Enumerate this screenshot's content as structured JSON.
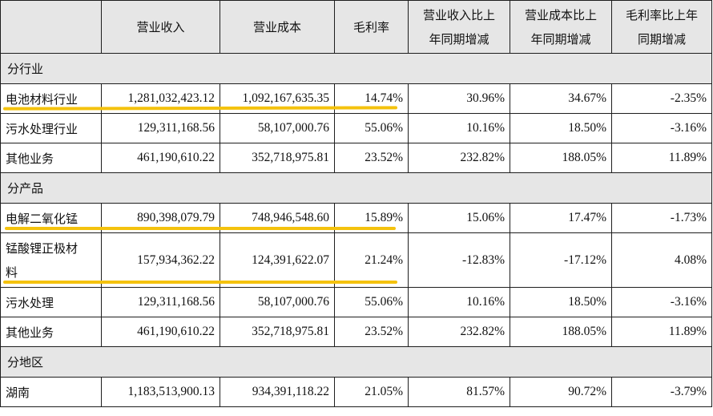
{
  "headers": [
    "",
    "营业收入",
    "营业成本",
    "毛利率",
    "营业收入比上年同期增减",
    "营业成本比上年同期增减",
    "毛利率比上年同期增减"
  ],
  "headers_display": {
    "h4": [
      "营业收入比上",
      "年同期增减"
    ],
    "h5": [
      "营业成本比上",
      "年同期增减"
    ],
    "h6": [
      "毛利率比上年",
      "同期增减"
    ]
  },
  "sections": [
    {
      "title": "分行业",
      "rows": [
        {
          "label": "电池材料行业",
          "revenue": "1,281,032,423.12",
          "cost": "1,092,167,635.35",
          "margin": "14.74%",
          "rev_yoy": "30.96%",
          "cost_yoy": "34.67%",
          "margin_yoy": "-2.35%",
          "highlighted": true
        },
        {
          "label": "污水处理行业",
          "revenue": "129,311,168.56",
          "cost": "58,107,000.76",
          "margin": "55.06%",
          "rev_yoy": "10.16%",
          "cost_yoy": "18.50%",
          "margin_yoy": "-3.16%"
        },
        {
          "label": "其他业务",
          "revenue": "461,190,610.22",
          "cost": "352,718,975.81",
          "margin": "23.52%",
          "rev_yoy": "232.82%",
          "cost_yoy": "188.05%",
          "margin_yoy": "11.89%"
        }
      ]
    },
    {
      "title": "分产品",
      "rows": [
        {
          "label": "电解二氧化锰",
          "revenue": "890,398,079.79",
          "cost": "748,946,548.60",
          "margin": "15.89%",
          "rev_yoy": "15.06%",
          "cost_yoy": "17.47%",
          "margin_yoy": "-1.73%",
          "highlighted": true
        },
        {
          "label": "锰酸锂正极材料",
          "label_lines": [
            "锰酸锂正极材",
            "料"
          ],
          "revenue": "157,934,362.22",
          "cost": "124,391,622.07",
          "margin": "21.24%",
          "rev_yoy": "-12.83%",
          "cost_yoy": "-17.12%",
          "margin_yoy": "4.08%",
          "highlighted": true
        },
        {
          "label": "污水处理",
          "revenue": "129,311,168.56",
          "cost": "58,107,000.76",
          "margin": "55.06%",
          "rev_yoy": "10.16%",
          "cost_yoy": "18.50%",
          "margin_yoy": "-3.16%"
        },
        {
          "label": "其他业务",
          "revenue": "461,190,610.22",
          "cost": "352,718,975.81",
          "margin": "23.52%",
          "rev_yoy": "232.82%",
          "cost_yoy": "188.05%",
          "margin_yoy": "11.89%"
        }
      ]
    },
    {
      "title": "分地区",
      "rows": [
        {
          "label": "湖南",
          "revenue": "1,183,513,900.13",
          "cost": "934,391,118.22",
          "margin": "21.05%",
          "rev_yoy": "81.57%",
          "cost_yoy": "90.72%",
          "margin_yoy": "-3.79%"
        }
      ]
    }
  ],
  "highlight_color": "#f4c20d"
}
